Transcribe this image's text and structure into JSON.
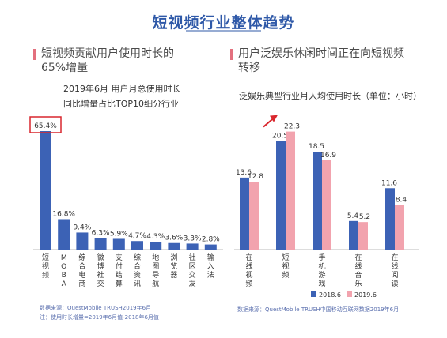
{
  "page": {
    "title": "短视频行业整体趋势",
    "left": {
      "heading_line1": "短视频贡献用户使用时长的",
      "heading_line2": "65%增量",
      "sub_line1": "2019年6月 用户月总使用时长",
      "sub_line2": "同比增量占比TOP10细分行业",
      "source_line1": "数据来源：QuestMobile TRUSH2019年6月",
      "source_line2": "注：使用时长增量=2019年6月值-2018年6月值"
    },
    "right": {
      "heading_line1": "用户泛娱乐休闲时间正在向短视频",
      "heading_line2": "转移",
      "sub_line1": "泛娱乐典型行业月人均使用时长（单位：小时）",
      "source_line1": "数据来源：QuestMobile TRUSH中国移动互联网数据2019年6月"
    }
  },
  "chart_data": [
    {
      "type": "bar",
      "categories": [
        "短视频",
        "MOBA",
        "综合电商",
        "微博社交",
        "支付结算",
        "综合资讯",
        "地图导航",
        "浏览器",
        "社区交友",
        "输入法"
      ],
      "values": [
        65.4,
        16.8,
        9.4,
        6.3,
        5.9,
        4.7,
        4.3,
        3.6,
        3.3,
        2.8
      ],
      "value_labels": [
        "65.4%",
        "16.8%",
        "9.4%",
        "6.3%",
        "5.9%",
        "4.7%",
        "4.3%",
        "3.6%",
        "3.3%",
        "2.8%"
      ],
      "highlight": "短视频",
      "color": "#3c62b5",
      "highlight_box_color": "#d9272e"
    },
    {
      "type": "bar",
      "categories": [
        "在线视频",
        "短视频",
        "手机游戏",
        "在线音乐",
        "在线阅读"
      ],
      "series": [
        {
          "name": "2018.6",
          "values": [
            13.6,
            20.5,
            18.5,
            5.4,
            11.6
          ],
          "color": "#3c62b5"
        },
        {
          "name": "2019.6",
          "values": [
            12.8,
            22.3,
            16.9,
            5.2,
            8.4
          ],
          "color": "#f2a3ae"
        }
      ],
      "legend_position": "bottom",
      "arrow_color": "#d9272e"
    }
  ]
}
